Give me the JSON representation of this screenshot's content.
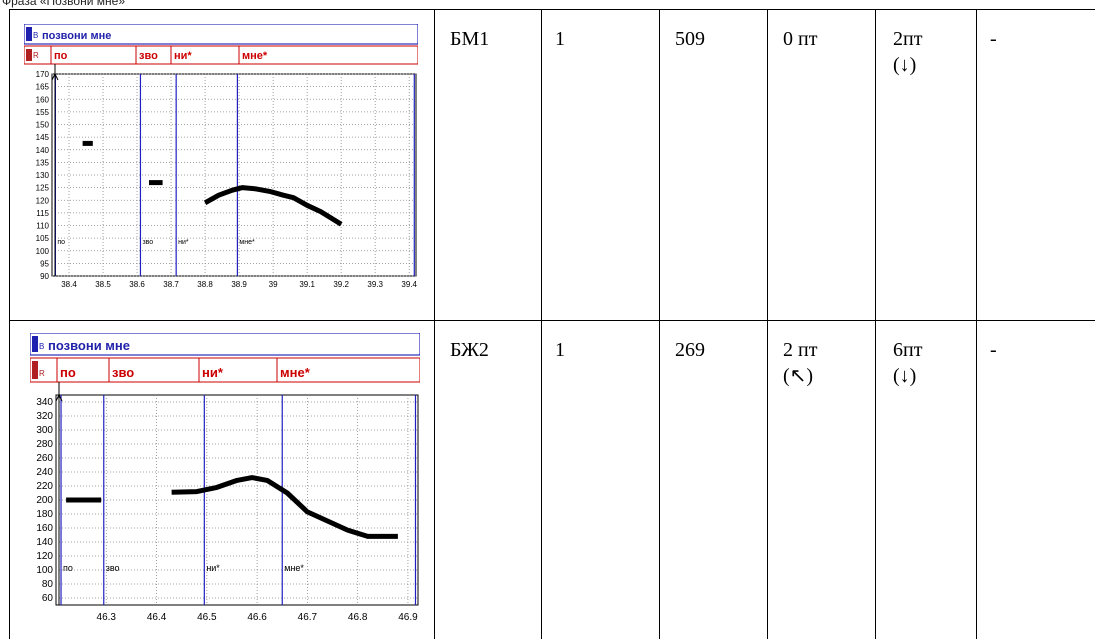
{
  "caption": "Фраза «Позвони мне»",
  "rows": [
    {
      "speaker": "БМ1",
      "count": "1",
      "value": "509",
      "col4_line1": "0 пт",
      "col4_line2": "",
      "col5_line1": "2пт",
      "col5_line2": "(↓)",
      "col6": "-",
      "plot": {
        "phrase_label": "позвони мне",
        "tier_icon_b": "B",
        "tier_icon_r": "R",
        "syllables": [
          "по",
          "зво",
          "ни*",
          "мне*"
        ],
        "boundary_labels": [
          "по",
          "зво",
          "ни*",
          "мне*"
        ],
        "chart_data": {
          "type": "line",
          "title": "",
          "xlabel": "",
          "ylabel": "",
          "xlim": [
            38.35,
            39.42
          ],
          "ylim": [
            90,
            170
          ],
          "x_ticks": [
            "38.4",
            "38.5",
            "38.6",
            "38.7",
            "38.8",
            "38.9",
            "39",
            "39.1",
            "39.2",
            "39.3",
            "39.4"
          ],
          "y_ticks": [
            "170",
            "165",
            "160",
            "155",
            "150",
            "145",
            "140",
            "135",
            "130",
            "125",
            "120",
            "115",
            "110",
            "105",
            "100",
            "95",
            "90"
          ],
          "boundaries": [
            38.36,
            38.61,
            38.715,
            38.895,
            39.415
          ],
          "series": [
            {
              "values": [
                [
                  38.44,
                  142.5
                ],
                [
                  38.47,
                  142.5
                ]
              ]
            },
            {
              "values": [
                [
                  38.635,
                  127
                ],
                [
                  38.675,
                  127
                ]
              ]
            },
            {
              "values": [
                [
                  38.8,
                  119
                ],
                [
                  38.84,
                  122
                ],
                [
                  38.88,
                  124
                ],
                [
                  38.91,
                  125
                ],
                [
                  38.95,
                  124.5
                ],
                [
                  38.99,
                  123.5
                ],
                [
                  39.03,
                  122
                ],
                [
                  39.06,
                  121
                ],
                [
                  39.1,
                  118
                ],
                [
                  39.14,
                  115.5
                ],
                [
                  39.2,
                  110.5
                ]
              ]
            }
          ]
        }
      }
    },
    {
      "speaker": "БЖ2",
      "count": "1",
      "value": "269",
      "col4_line1": "2 пт",
      "col4_line2": "(↖)",
      "col5_line1": "6пт",
      "col5_line2": "(↓)",
      "col6": "-",
      "plot": {
        "phrase_label": "позвони мне",
        "tier_icon_b": "B",
        "tier_icon_r": "R",
        "syllables": [
          "по",
          "зво",
          "ни*",
          "мне*"
        ],
        "boundary_labels": [
          "по",
          "зво",
          "ни*",
          "мне*"
        ],
        "chart_data": {
          "type": "line",
          "title": "",
          "xlabel": "",
          "ylabel": "",
          "xlim": [
            46.2,
            46.92
          ],
          "ylim": [
            50,
            350
          ],
          "x_ticks": [
            "46.3",
            "46.4",
            "46.5",
            "46.6",
            "46.7",
            "46.8",
            "46.9"
          ],
          "y_ticks": [
            "340",
            "320",
            "300",
            "280",
            "260",
            "240",
            "220",
            "200",
            "180",
            "160",
            "140",
            "120",
            "100",
            "80",
            "60"
          ],
          "boundaries": [
            46.21,
            46.295,
            46.495,
            46.65,
            46.915
          ],
          "series": [
            {
              "values": [
                [
                  46.22,
                  200
                ],
                [
                  46.29,
                  200
                ]
              ]
            },
            {
              "values": [
                [
                  46.43,
                  211
                ],
                [
                  46.48,
                  212
                ],
                [
                  46.52,
                  218
                ],
                [
                  46.56,
                  228
                ],
                [
                  46.59,
                  232
                ],
                [
                  46.62,
                  228
                ],
                [
                  46.66,
                  210
                ],
                [
                  46.7,
                  183
                ],
                [
                  46.74,
                  170
                ],
                [
                  46.78,
                  157
                ],
                [
                  46.82,
                  148
                ],
                [
                  46.88,
                  148
                ]
              ]
            }
          ]
        }
      }
    }
  ]
}
